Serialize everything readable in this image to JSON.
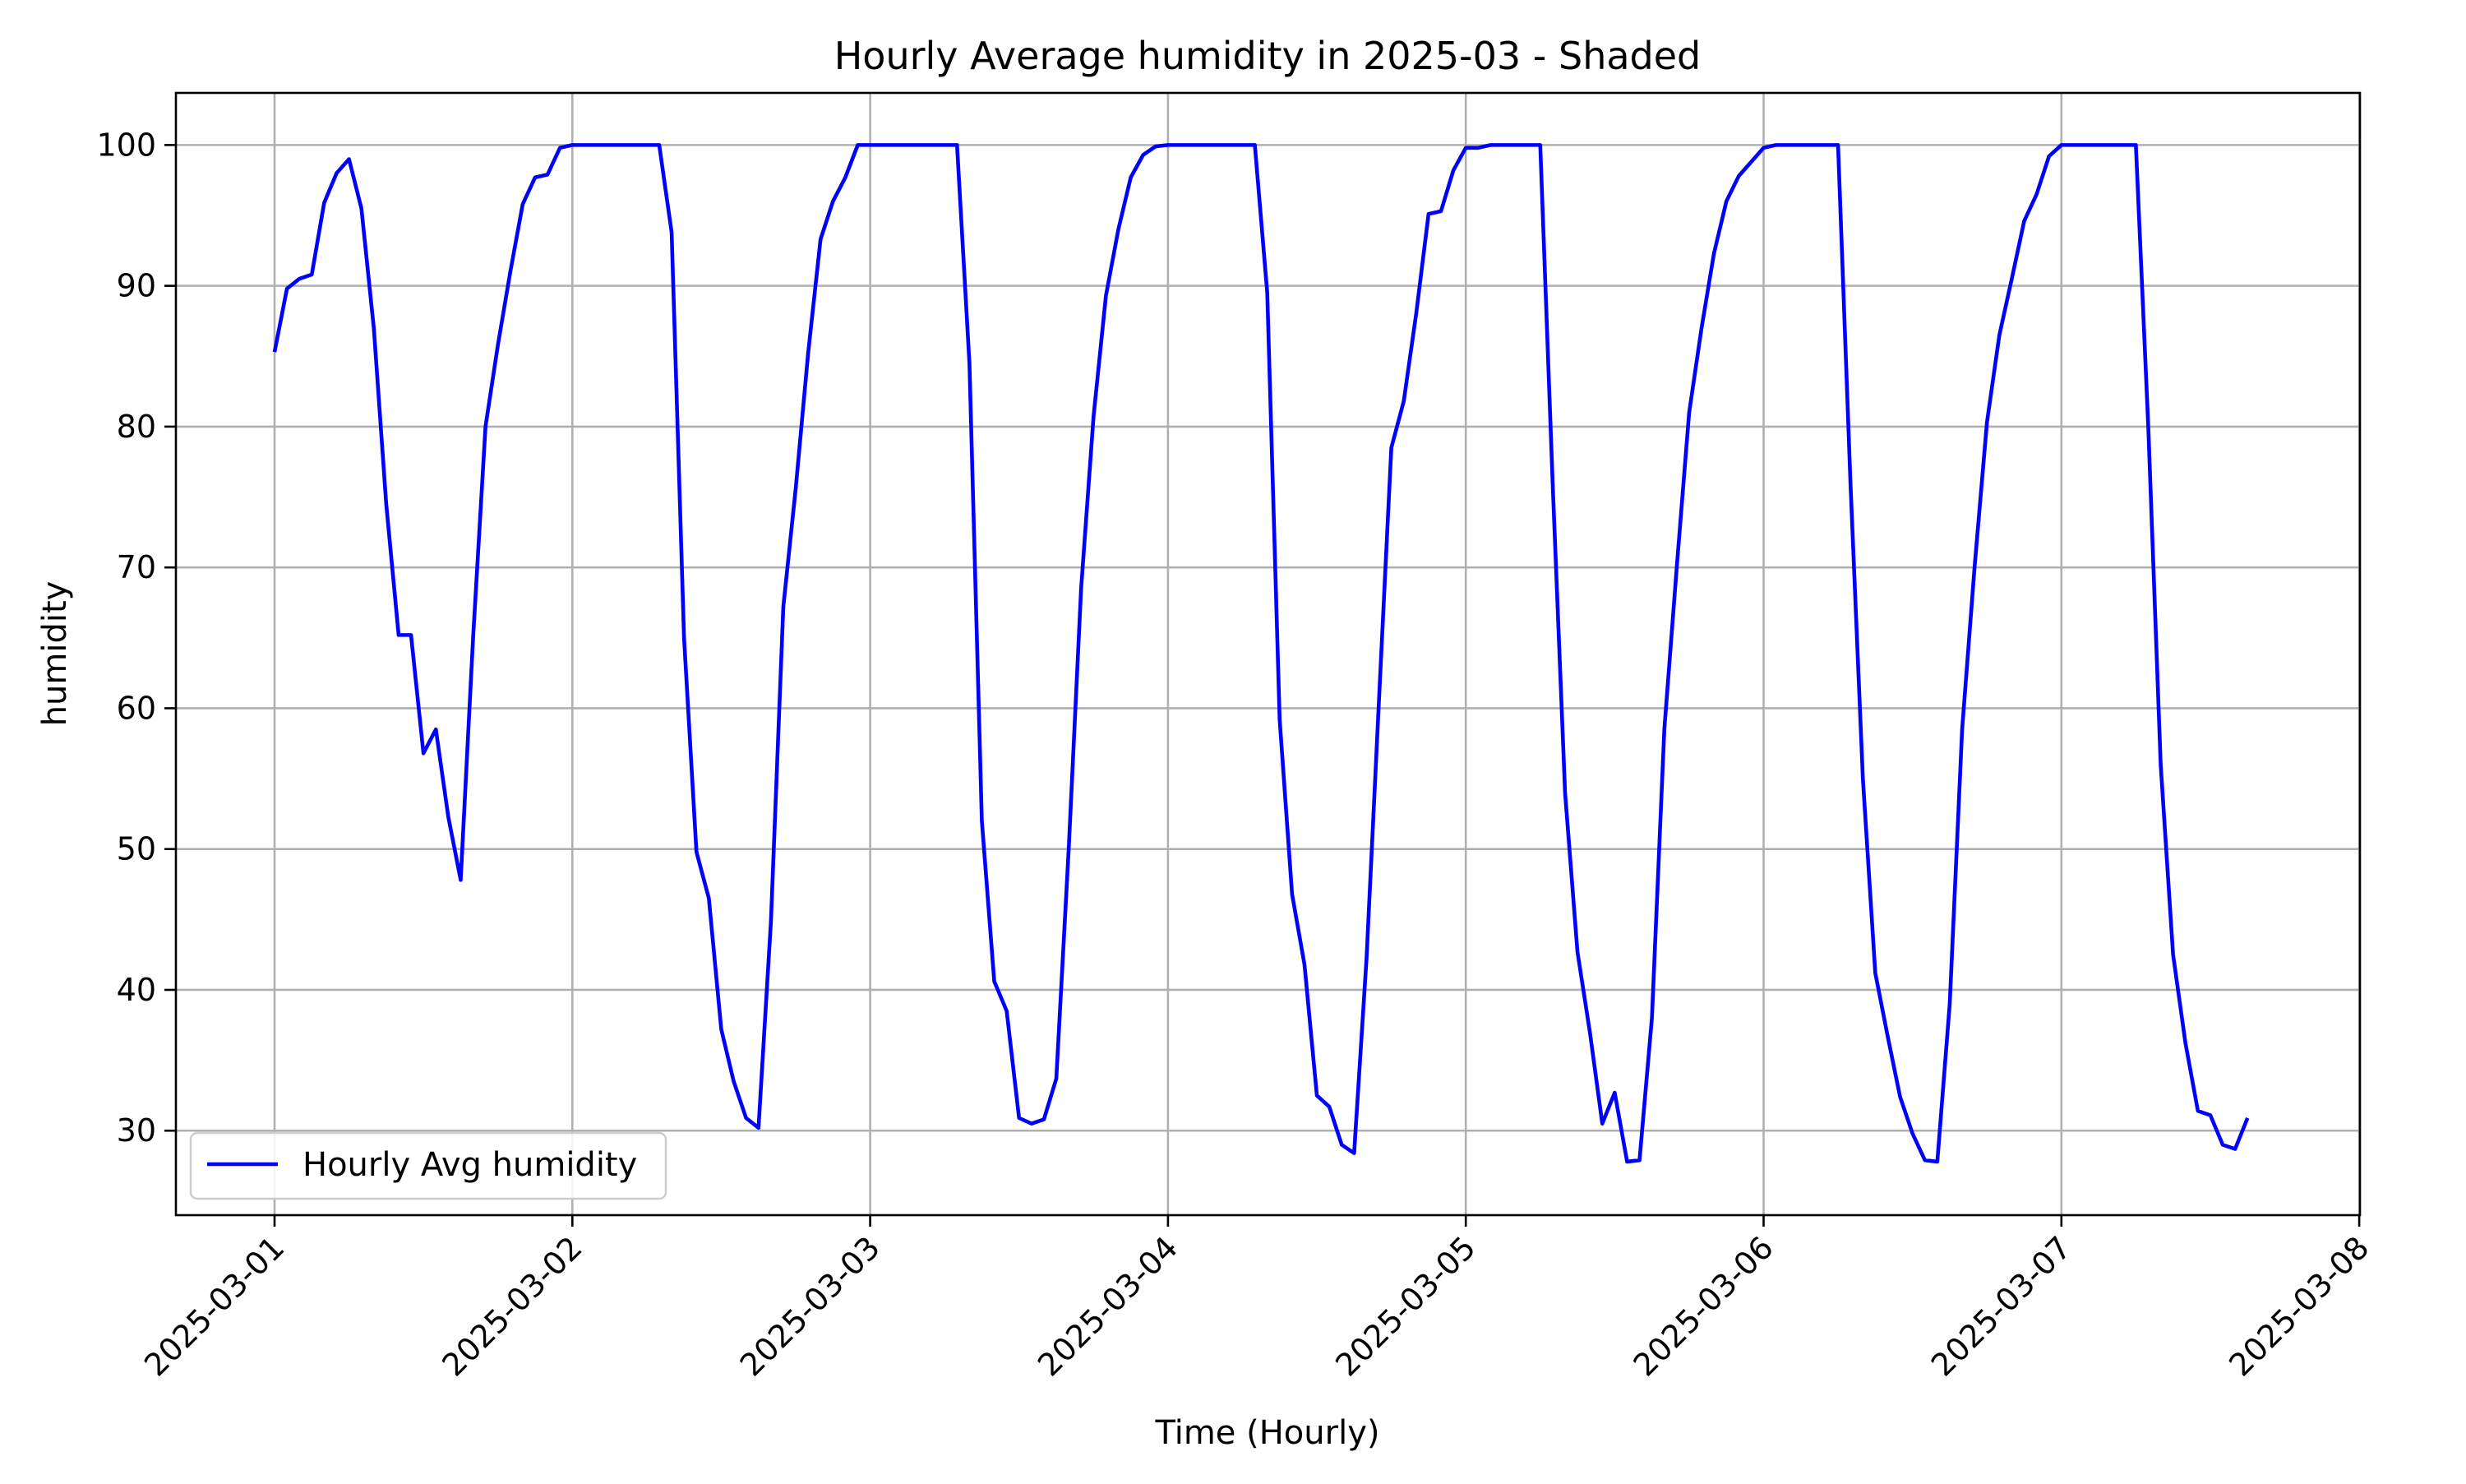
{
  "chart_data": {
    "type": "line",
    "title": "Hourly Average humidity in 2025-03 - Shaded",
    "xlabel": "Time (Hourly)",
    "ylabel": "humidity",
    "xlim": [
      "2025-03-01 00:00",
      "2025-03-08 00:00"
    ],
    "ylim": [
      24,
      103.7
    ],
    "x_ticks": [
      "2025-03-01",
      "2025-03-02",
      "2025-03-03",
      "2025-03-04",
      "2025-03-05",
      "2025-03-06",
      "2025-03-07",
      "2025-03-08"
    ],
    "y_ticks": [
      30,
      40,
      50,
      60,
      70,
      80,
      90,
      100
    ],
    "grid": true,
    "legend_position": "lower-left",
    "series": [
      {
        "name": "Hourly Avg humidity",
        "color": "#0000ff",
        "x_start": "2025-03-01 00:00",
        "x_step": "1 hour",
        "values": [
          85.3,
          89.8,
          90.5,
          90.8,
          95.9,
          98.0,
          99.0,
          95.5,
          87.0,
          74.5,
          65.2,
          65.2,
          56.8,
          58.5,
          52.3,
          47.8,
          65.0,
          80.0,
          85.8,
          91.0,
          95.8,
          97.7,
          97.9,
          99.8,
          100.0,
          100.0,
          100.0,
          100.0,
          100.0,
          100.0,
          100.0,
          100.0,
          93.8,
          65.0,
          49.8,
          46.5,
          37.2,
          33.5,
          30.9,
          30.2,
          44.8,
          67.2,
          75.6,
          85.2,
          93.3,
          96.0,
          97.7,
          100.0,
          100.0,
          100.0,
          100.0,
          100.0,
          100.0,
          100.0,
          100.0,
          100.0,
          84.5,
          52.0,
          40.6,
          38.5,
          30.9,
          30.5,
          30.8,
          33.7,
          50.0,
          68.5,
          80.7,
          89.3,
          94.0,
          97.7,
          99.3,
          99.9,
          100.0,
          100.0,
          100.0,
          100.0,
          100.0,
          100.0,
          100.0,
          100.0,
          89.5,
          59.2,
          46.8,
          41.8,
          32.5,
          31.7,
          29.0,
          28.4,
          42.2,
          60.5,
          78.5,
          81.8,
          88.0,
          95.1,
          95.3,
          98.2,
          99.8,
          99.8,
          100.0,
          100.0,
          100.0,
          100.0,
          100.0,
          76.0,
          54.0,
          42.7,
          37.0,
          30.5,
          32.7,
          27.8,
          27.9,
          38.0,
          58.5,
          70.0,
          81.0,
          87.0,
          92.3,
          96.0,
          97.8,
          98.8,
          99.8,
          100.0,
          100.0,
          100.0,
          100.0,
          100.0,
          100.0,
          76.0,
          55.0,
          41.2,
          36.7,
          32.4,
          29.8,
          27.9,
          27.8,
          39.0,
          58.5,
          70.0,
          80.3,
          86.5,
          90.5,
          94.6,
          96.5,
          99.2,
          100.0,
          100.0,
          100.0,
          100.0,
          100.0,
          100.0,
          100.0,
          80.0,
          56.0,
          42.5,
          36.2,
          31.4,
          31.1,
          29.0,
          28.7,
          30.9
        ]
      }
    ]
  }
}
